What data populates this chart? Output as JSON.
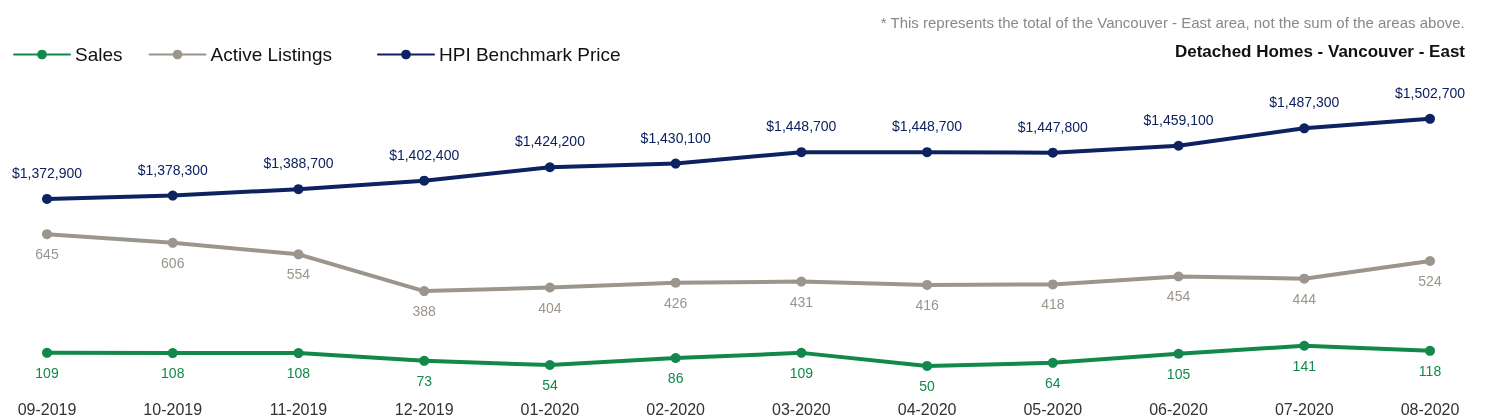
{
  "chart_data": [
    {
      "type": "line",
      "title": "Detached Homes - Vancouver - East",
      "annotations": [
        "* This represents the total of the Vancouver - East area, not the sum of the areas above."
      ],
      "categories": [
        null,
        null,
        null,
        null,
        null,
        null,
        null,
        null,
        null,
        null,
        null,
        null
      ],
      "series": [
        {
          "name": "HPI Benchmark Price",
          "color": "#0d2260",
          "values": [
            1372900,
            1378300,
            1388700,
            1402400,
            1424200,
            1430100,
            1448700,
            1448700,
            1447800,
            1459100,
            1487300,
            1502700
          ],
          "value_labels": [
            "$1,372,900",
            "$1,378,300",
            "$1,388,700",
            "$1,402,400",
            "$1,424,200",
            "$1,430,100",
            "$1,448,700",
            "$1,448,700",
            "$1,447,800",
            "$1,459,100",
            "$1,487,300",
            "$1,502,700"
          ]
        }
      ],
      "tick_labels": false,
      "legend": "top",
      "marker": "circle",
      "line_style": "solid"
    },
    {
      "type": "line",
      "categories": [
        "09-2019",
        "10-2019",
        "11-2019",
        "12-2019",
        "01-2020",
        "02-2020",
        "03-2020",
        "04-2020",
        "05-2020",
        "06-2020",
        "07-2020",
        "08-2020"
      ],
      "series": [
        {
          "name": "Sales",
          "color": "#12884a",
          "values": [
            109,
            108,
            108,
            73,
            54,
            86,
            109,
            50,
            64,
            105,
            141,
            118
          ]
        },
        {
          "name": "Active Listings",
          "color": "#9b958c",
          "values": [
            645,
            606,
            554,
            388,
            404,
            426,
            431,
            416,
            418,
            454,
            444,
            524
          ]
        }
      ],
      "tick_labels": "x",
      "data_labels": true,
      "legend": "top left",
      "marker": "circle",
      "line_style": "solid"
    }
  ]
}
